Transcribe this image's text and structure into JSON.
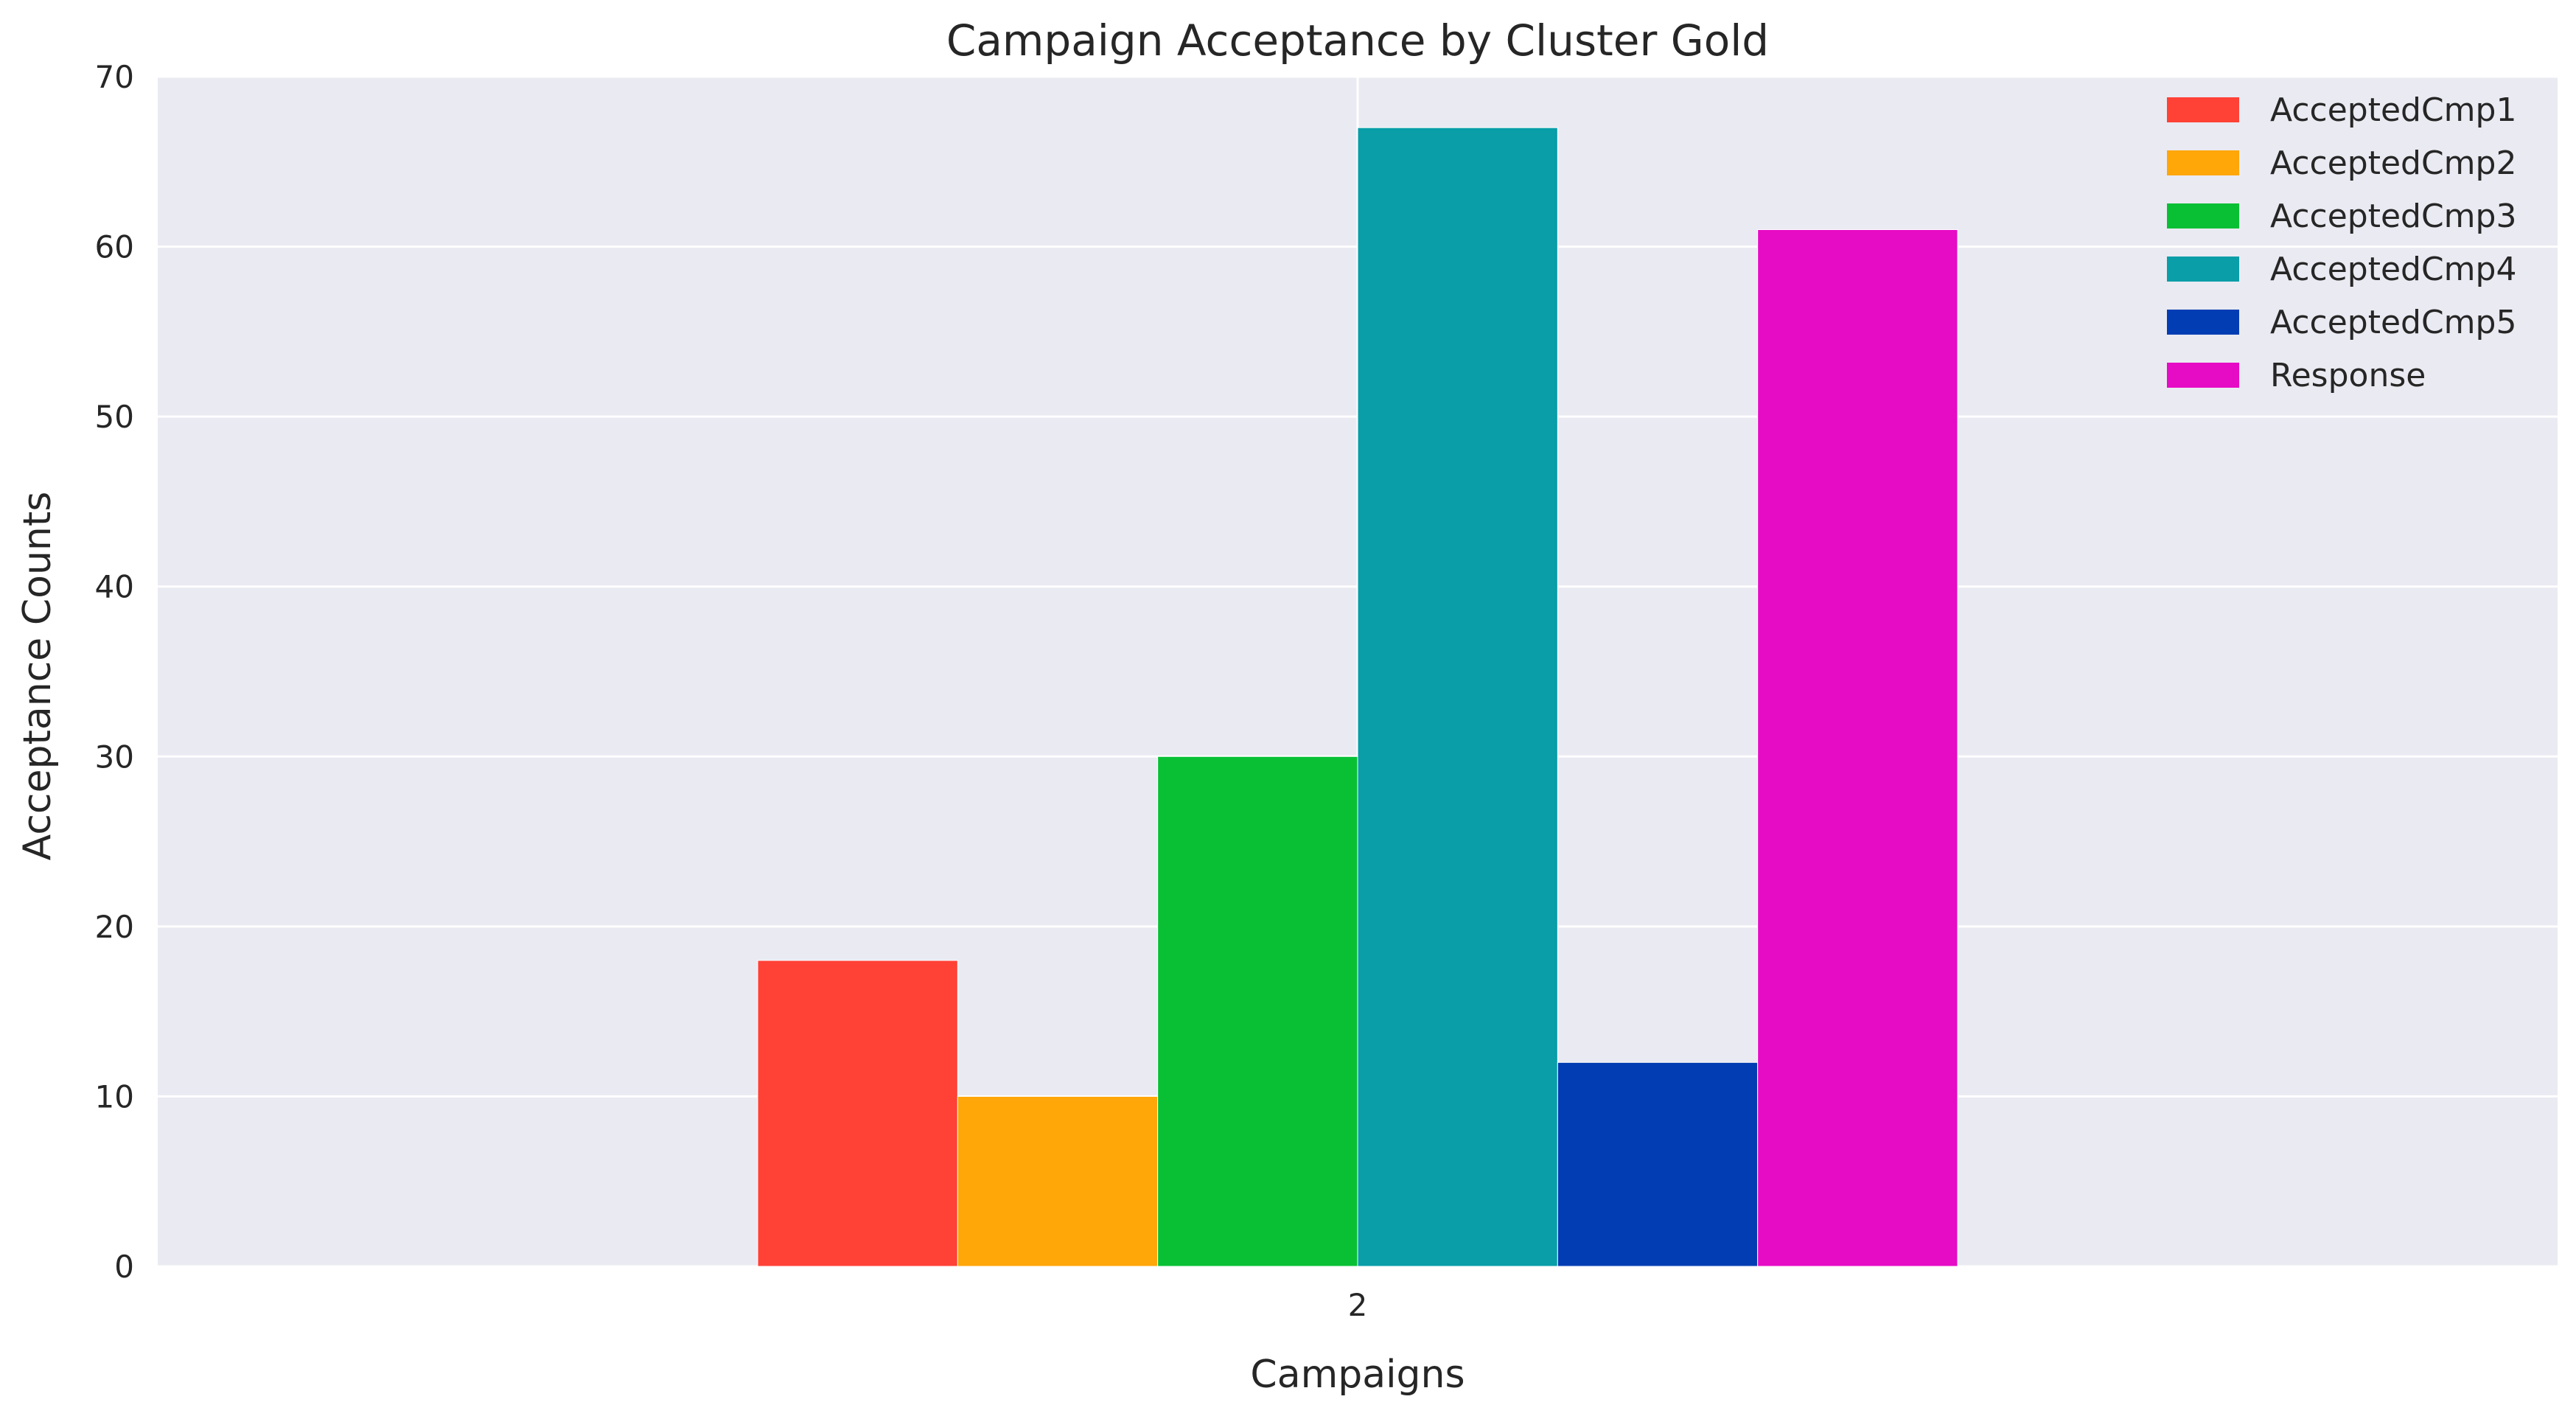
{
  "chart_data": {
    "type": "bar",
    "title": "Campaign Acceptance by Cluster Gold",
    "xlabel": "Campaigns",
    "ylabel": "Acceptance Counts",
    "categories": [
      "2"
    ],
    "ylim": [
      0,
      70
    ],
    "yticks": [
      0,
      10,
      20,
      30,
      40,
      50,
      60,
      70
    ],
    "grid": true,
    "legend_position": "top-right",
    "background_color": "#eaeaf2",
    "series": [
      {
        "name": "AcceptedCmp1",
        "values": [
          18
        ],
        "color": "#ff4136"
      },
      {
        "name": "AcceptedCmp2",
        "values": [
          10
        ],
        "color": "#ffa609"
      },
      {
        "name": "AcceptedCmp3",
        "values": [
          30
        ],
        "color": "#09c035"
      },
      {
        "name": "AcceptedCmp4",
        "values": [
          67
        ],
        "color": "#099ea8"
      },
      {
        "name": "AcceptedCmp5",
        "values": [
          12
        ],
        "color": "#033db3"
      },
      {
        "name": "Response",
        "values": [
          61
        ],
        "color": "#e60bc5"
      }
    ]
  }
}
